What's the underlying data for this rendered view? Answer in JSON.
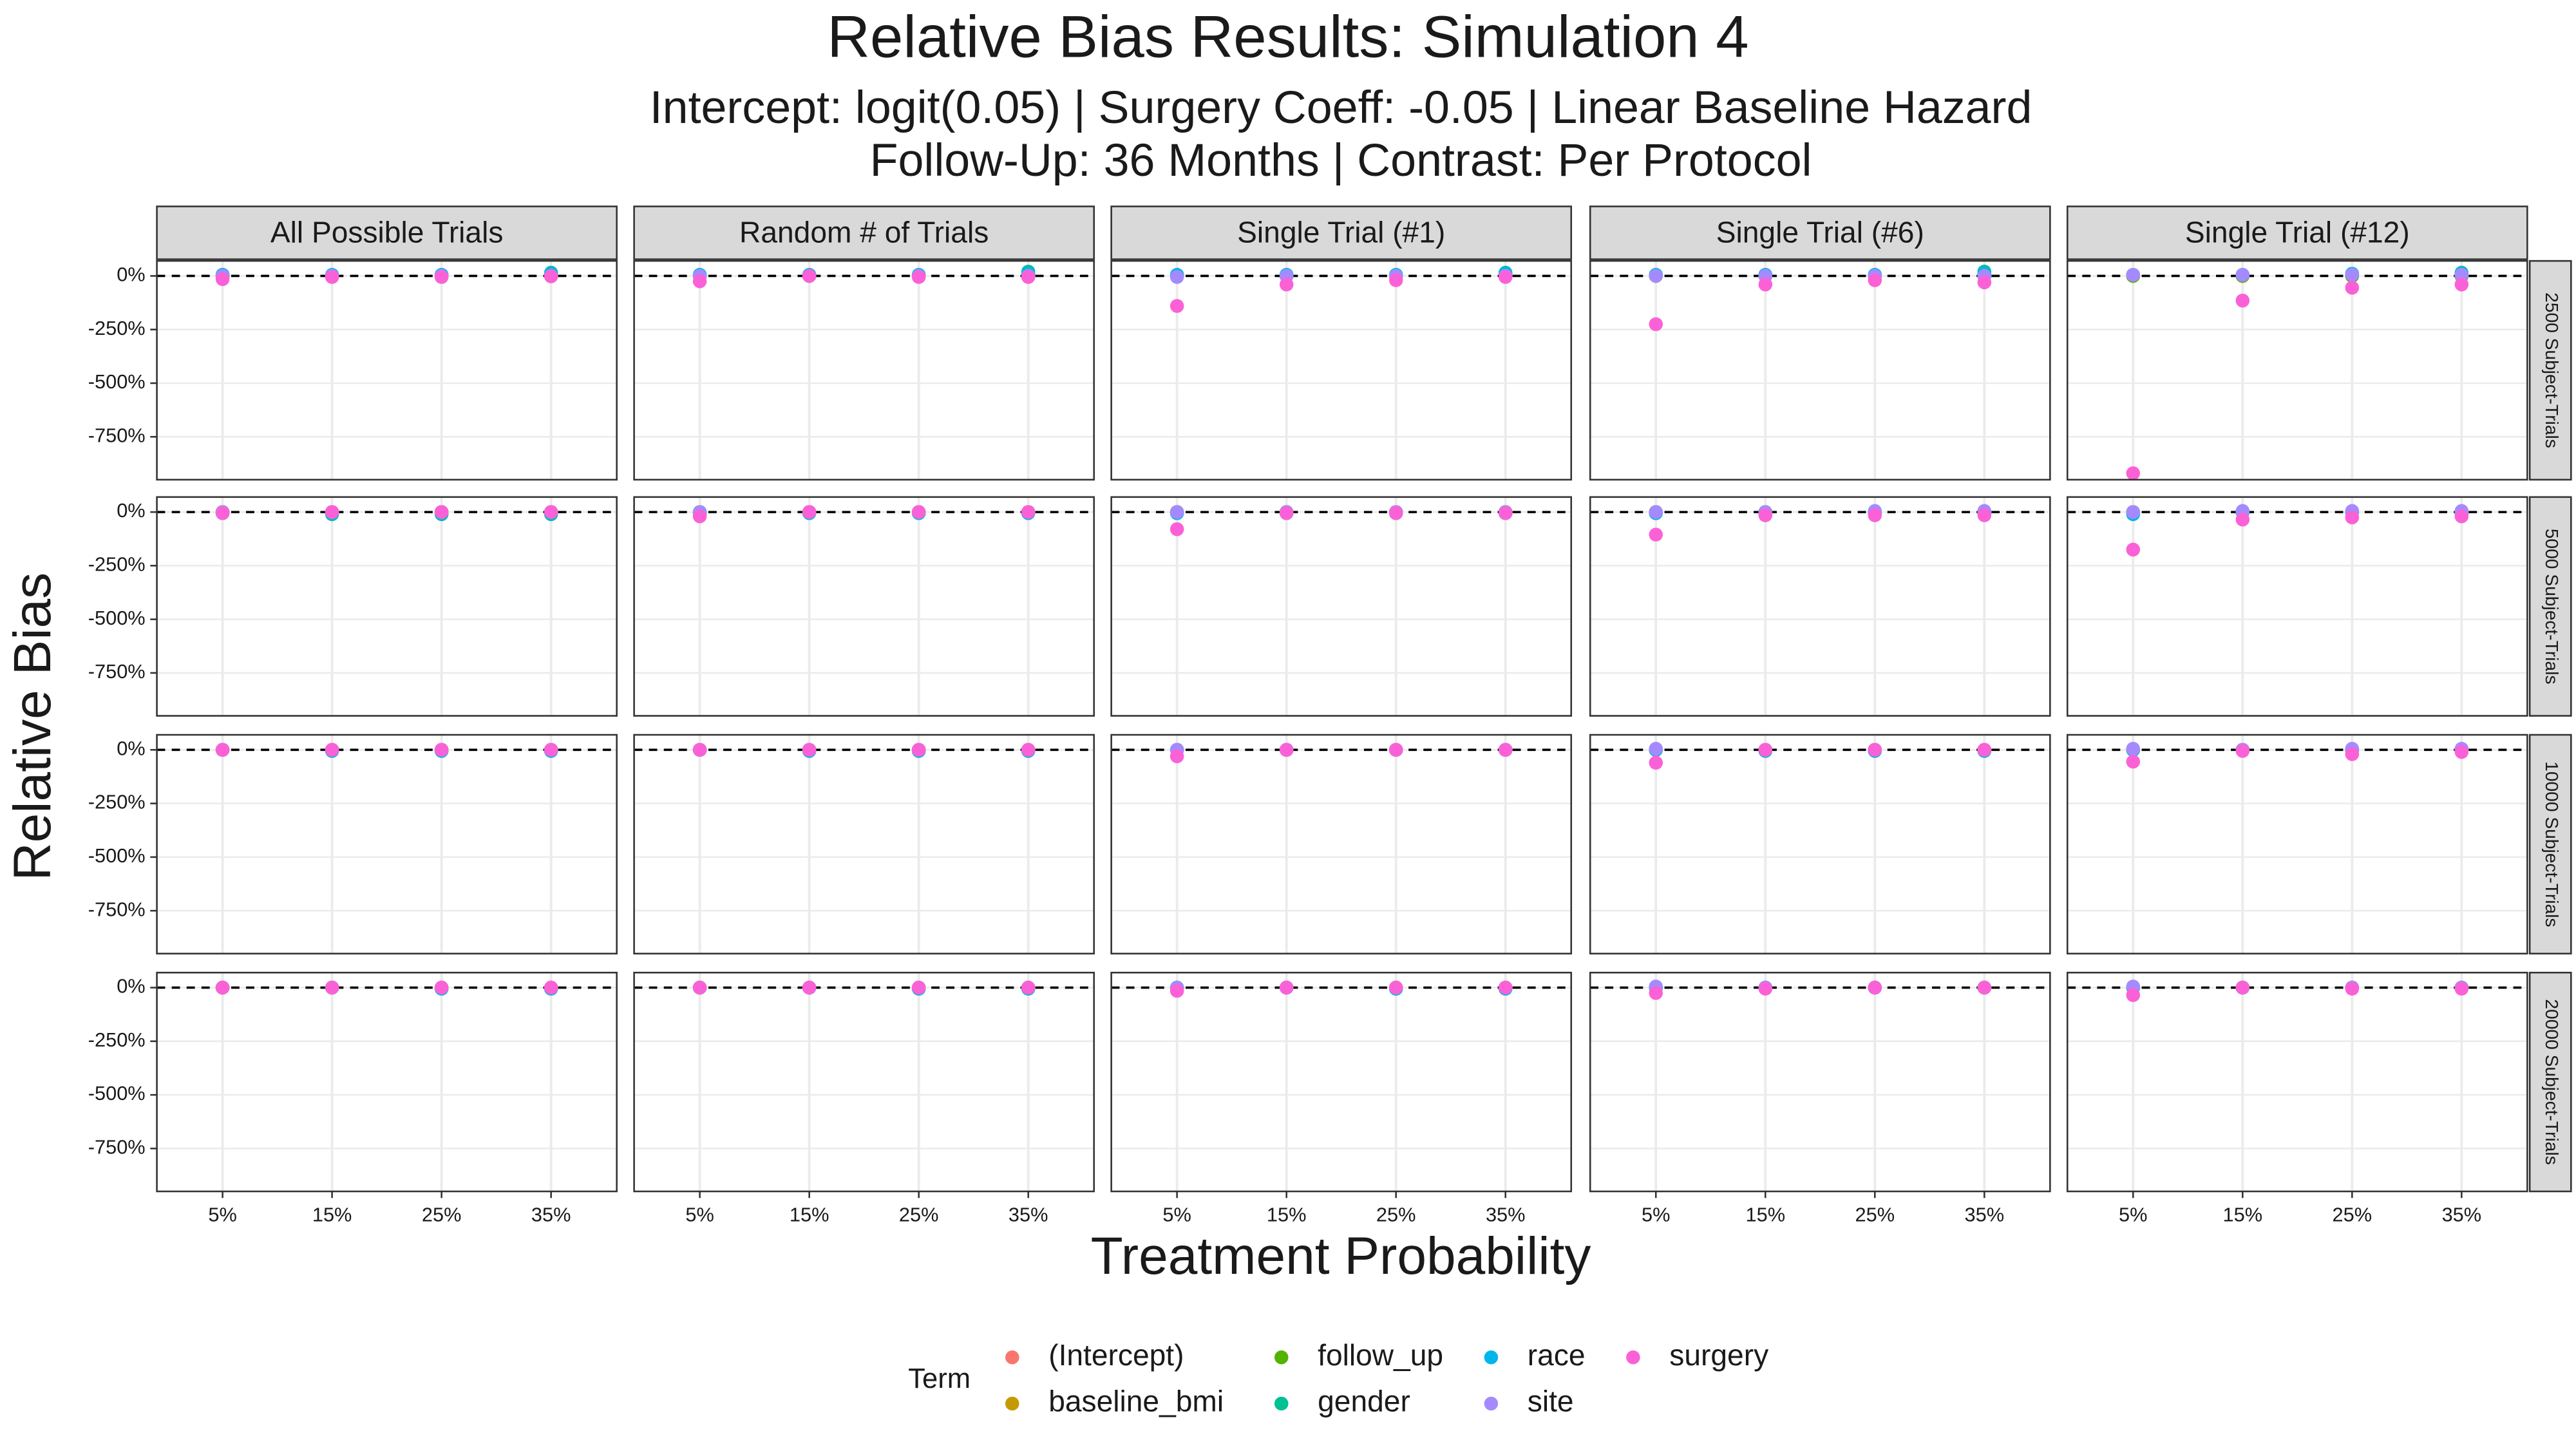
{
  "chart_data": {
    "type": "scatter",
    "title": "Relative Bias Results: Simulation 4",
    "subtitle": [
      "Intercept: logit(0.05) | Surgery Coeff: -0.05 | Linear Baseline Hazard",
      "Follow-Up: 36 Months | Contrast: Per Protocol"
    ],
    "xlabel": "Treatment Probability",
    "ylabel": "Relative Bias",
    "legend_title": "Term",
    "columns": [
      "All Possible Trials",
      "Random # of Trials",
      "Single Trial (#1)",
      "Single Trial (#6)",
      "Single Trial (#12)"
    ],
    "rows": [
      "2500 Subject-Trials",
      "5000 Subject-Trials",
      "10000 Subject-Trials",
      "20000 Subject-Trials"
    ],
    "categories": [
      "5%",
      "15%",
      "25%",
      "35%"
    ],
    "ylim": [
      -950,
      70
    ],
    "yticks": [
      {
        "value": 0,
        "label": "0%"
      },
      {
        "value": -250,
        "label": "-250%"
      },
      {
        "value": -500,
        "label": "-500%"
      },
      {
        "value": -750,
        "label": "-750%"
      }
    ],
    "grid": true,
    "series": [
      {
        "name": "(Intercept)",
        "color": "#F8766D"
      },
      {
        "name": "baseline_bmi",
        "color": "#C49A00"
      },
      {
        "name": "follow_up",
        "color": "#53B400"
      },
      {
        "name": "gender",
        "color": "#00C094"
      },
      {
        "name": "race",
        "color": "#00B6EB"
      },
      {
        "name": "site",
        "color": "#A58AFF"
      },
      {
        "name": "surgery",
        "color": "#FB61D7"
      }
    ],
    "panels": [
      [
        [
          [
            0,
            0,
            0,
            0
          ],
          [
            0,
            0,
            0,
            0
          ],
          [
            0,
            0,
            0,
            0
          ],
          [
            5,
            0,
            5,
            15
          ],
          [
            5,
            5,
            5,
            10
          ],
          [
            0,
            0,
            0,
            0
          ],
          [
            -15,
            -5,
            -5,
            -2
          ]
        ],
        [
          [
            0,
            0,
            0,
            0
          ],
          [
            0,
            0,
            0,
            0
          ],
          [
            0,
            0,
            0,
            0
          ],
          [
            5,
            5,
            5,
            20
          ],
          [
            5,
            5,
            5,
            10
          ],
          [
            0,
            0,
            0,
            0
          ],
          [
            -25,
            0,
            -5,
            -5
          ]
        ],
        [
          [
            0,
            0,
            0,
            0
          ],
          [
            0,
            0,
            0,
            0
          ],
          [
            0,
            0,
            0,
            0
          ],
          [
            5,
            5,
            5,
            15
          ],
          [
            5,
            5,
            5,
            10
          ],
          [
            -5,
            0,
            0,
            0
          ],
          [
            -140,
            -40,
            -20,
            -5
          ]
        ],
        [
          [
            0,
            0,
            0,
            0
          ],
          [
            0,
            0,
            0,
            0
          ],
          [
            0,
            0,
            0,
            0
          ],
          [
            5,
            5,
            5,
            20
          ],
          [
            5,
            5,
            5,
            10
          ],
          [
            0,
            0,
            0,
            0
          ],
          [
            -225,
            -40,
            -20,
            -30
          ]
        ],
        [
          [
            0,
            0,
            0,
            0
          ],
          [
            0,
            0,
            0,
            0
          ],
          [
            0,
            0,
            0,
            0
          ],
          [
            5,
            5,
            10,
            15
          ],
          [
            5,
            5,
            10,
            10
          ],
          [
            5,
            5,
            5,
            5
          ],
          [
            -920,
            -115,
            -55,
            -40
          ]
        ]
      ],
      [
        [
          [
            0,
            0,
            0,
            0
          ],
          [
            0,
            0,
            0,
            0
          ],
          [
            0,
            0,
            0,
            0
          ],
          [
            -5,
            -10,
            -10,
            -10
          ],
          [
            -5,
            -5,
            -5,
            -5
          ],
          [
            0,
            0,
            0,
            0
          ],
          [
            -5,
            0,
            0,
            0
          ]
        ],
        [
          [
            0,
            0,
            0,
            0
          ],
          [
            0,
            0,
            0,
            0
          ],
          [
            0,
            0,
            0,
            0
          ],
          [
            -5,
            -5,
            -5,
            -5
          ],
          [
            -5,
            -5,
            -5,
            -5
          ],
          [
            0,
            0,
            0,
            0
          ],
          [
            -20,
            0,
            0,
            0
          ]
        ],
        [
          [
            0,
            0,
            0,
            0
          ],
          [
            0,
            0,
            0,
            0
          ],
          [
            0,
            0,
            0,
            0
          ],
          [
            -5,
            -5,
            -5,
            -5
          ],
          [
            -5,
            -5,
            -5,
            -5
          ],
          [
            0,
            0,
            0,
            0
          ],
          [
            -80,
            -5,
            -5,
            -5
          ]
        ],
        [
          [
            0,
            0,
            0,
            0
          ],
          [
            0,
            0,
            0,
            0
          ],
          [
            0,
            0,
            0,
            0
          ],
          [
            -5,
            -5,
            -5,
            -5
          ],
          [
            -5,
            -5,
            0,
            0
          ],
          [
            0,
            0,
            5,
            5
          ],
          [
            -105,
            -15,
            -15,
            -15
          ]
        ],
        [
          [
            0,
            0,
            0,
            0
          ],
          [
            0,
            0,
            0,
            0
          ],
          [
            0,
            0,
            0,
            0
          ],
          [
            -5,
            0,
            0,
            -5
          ],
          [
            -10,
            0,
            0,
            -5
          ],
          [
            0,
            5,
            5,
            5
          ],
          [
            -175,
            -35,
            -25,
            -20
          ]
        ]
      ],
      [
        [
          [
            0,
            0,
            0,
            0
          ],
          [
            0,
            0,
            0,
            0
          ],
          [
            0,
            0,
            0,
            0
          ],
          [
            0,
            -5,
            -5,
            -5
          ],
          [
            0,
            -5,
            -5,
            -5
          ],
          [
            0,
            0,
            0,
            0
          ],
          [
            0,
            0,
            0,
            0
          ]
        ],
        [
          [
            0,
            0,
            0,
            0
          ],
          [
            0,
            0,
            0,
            0
          ],
          [
            0,
            0,
            0,
            0
          ],
          [
            0,
            -5,
            -5,
            -5
          ],
          [
            0,
            -5,
            -5,
            -5
          ],
          [
            0,
            0,
            0,
            0
          ],
          [
            0,
            0,
            0,
            0
          ]
        ],
        [
          [
            0,
            0,
            0,
            0
          ],
          [
            0,
            0,
            0,
            0
          ],
          [
            0,
            0,
            0,
            0
          ],
          [
            0,
            0,
            0,
            0
          ],
          [
            0,
            0,
            0,
            0
          ],
          [
            0,
            0,
            0,
            0
          ],
          [
            -30,
            0,
            0,
            0
          ]
        ],
        [
          [
            0,
            0,
            0,
            0
          ],
          [
            0,
            0,
            0,
            0
          ],
          [
            0,
            0,
            0,
            0
          ],
          [
            0,
            -5,
            -5,
            -5
          ],
          [
            0,
            -5,
            -5,
            -5
          ],
          [
            5,
            0,
            0,
            0
          ],
          [
            -60,
            0,
            0,
            0
          ]
        ],
        [
          [
            0,
            0,
            0,
            0
          ],
          [
            0,
            0,
            0,
            0
          ],
          [
            0,
            0,
            0,
            0
          ],
          [
            0,
            0,
            0,
            0
          ],
          [
            0,
            0,
            0,
            0
          ],
          [
            5,
            0,
            5,
            5
          ],
          [
            -55,
            -5,
            -20,
            -10
          ]
        ]
      ],
      [
        [
          [
            0,
            0,
            0,
            0
          ],
          [
            0,
            0,
            0,
            0
          ],
          [
            0,
            0,
            0,
            0
          ],
          [
            0,
            0,
            -5,
            -5
          ],
          [
            0,
            0,
            -5,
            -5
          ],
          [
            0,
            0,
            0,
            0
          ],
          [
            0,
            0,
            0,
            0
          ]
        ],
        [
          [
            0,
            0,
            0,
            0
          ],
          [
            0,
            0,
            0,
            0
          ],
          [
            0,
            0,
            0,
            0
          ],
          [
            0,
            0,
            -5,
            -5
          ],
          [
            0,
            0,
            -5,
            -5
          ],
          [
            0,
            0,
            0,
            0
          ],
          [
            0,
            0,
            0,
            0
          ]
        ],
        [
          [
            0,
            0,
            0,
            0
          ],
          [
            0,
            0,
            0,
            0
          ],
          [
            0,
            0,
            0,
            0
          ],
          [
            0,
            0,
            -5,
            -5
          ],
          [
            0,
            0,
            -5,
            -5
          ],
          [
            0,
            0,
            0,
            0
          ],
          [
            -15,
            0,
            0,
            0
          ]
        ],
        [
          [
            0,
            0,
            0,
            0
          ],
          [
            0,
            0,
            0,
            0
          ],
          [
            0,
            0,
            0,
            0
          ],
          [
            0,
            0,
            0,
            0
          ],
          [
            0,
            0,
            0,
            0
          ],
          [
            5,
            0,
            0,
            0
          ],
          [
            -25,
            -5,
            0,
            0
          ]
        ],
        [
          [
            0,
            0,
            0,
            0
          ],
          [
            0,
            0,
            0,
            0
          ],
          [
            0,
            0,
            0,
            0
          ],
          [
            0,
            0,
            0,
            0
          ],
          [
            0,
            0,
            0,
            0
          ],
          [
            5,
            0,
            0,
            0
          ],
          [
            -35,
            0,
            -5,
            -5
          ]
        ]
      ]
    ]
  }
}
